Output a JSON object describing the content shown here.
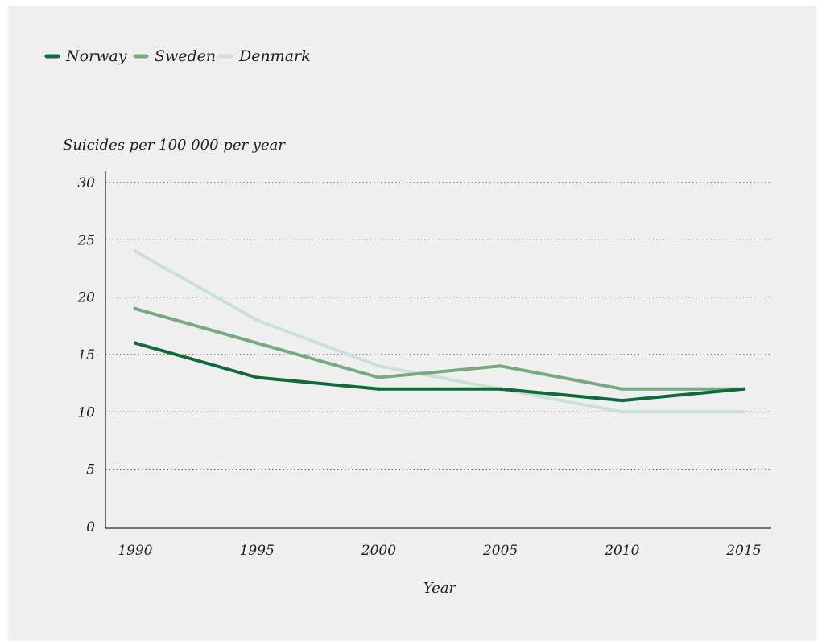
{
  "chart_data": {
    "type": "line",
    "xlabel": "Year",
    "ylabel": "Suicides per 100 000 per year",
    "x": [
      1990,
      1995,
      2000,
      2005,
      2010,
      2015
    ],
    "x_tick_labels": [
      "1990",
      "1995",
      "2000",
      "2005",
      "2010",
      "2015"
    ],
    "ylim": [
      0,
      30
    ],
    "y_ticks": [
      0,
      5,
      10,
      15,
      20,
      25,
      30
    ],
    "y_tick_labels": [
      "0",
      "5",
      "10",
      "15",
      "20",
      "25",
      "30"
    ],
    "grid": "horizontal dotted",
    "legend_position": "top-left",
    "series": [
      {
        "name": "Norway",
        "color": "#106b3c",
        "values": [
          16,
          13,
          12,
          12,
          11,
          12
        ]
      },
      {
        "name": "Sweden",
        "color": "#79a982",
        "values": [
          19,
          16,
          13,
          14,
          12,
          12
        ]
      },
      {
        "name": "Denmark",
        "color": "#c9e1d8",
        "values": [
          24,
          18,
          14,
          12,
          10,
          10
        ]
      }
    ]
  }
}
